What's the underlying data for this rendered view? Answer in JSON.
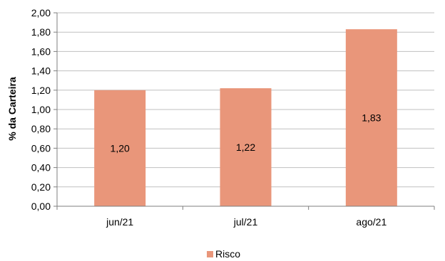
{
  "chart_data": {
    "type": "bar",
    "title": "",
    "xlabel": "",
    "ylabel": "% da Carteira",
    "categories": [
      "jun/21",
      "jul/21",
      "ago/21"
    ],
    "series": [
      {
        "name": "Risco",
        "values": [
          1.2,
          1.22,
          1.83
        ],
        "labels": [
          "1,20",
          "1,22",
          "1,83"
        ],
        "color": "#e9967a"
      }
    ],
    "ylim": [
      0,
      2.0
    ],
    "yticks": [
      0,
      0.2,
      0.4,
      0.6,
      0.8,
      1.0,
      1.2,
      1.4,
      1.6,
      1.8,
      2.0
    ],
    "ytick_labels": [
      "0,00",
      "0,20",
      "0,40",
      "0,60",
      "0,80",
      "1,00",
      "1,20",
      "1,40",
      "1,60",
      "1,80",
      "2,00"
    ],
    "grid": true,
    "legend_position": "bottom"
  },
  "colors": {
    "bar": "#e9967a",
    "grid": "#bfbfbf",
    "axis": "#7f7f7f"
  }
}
